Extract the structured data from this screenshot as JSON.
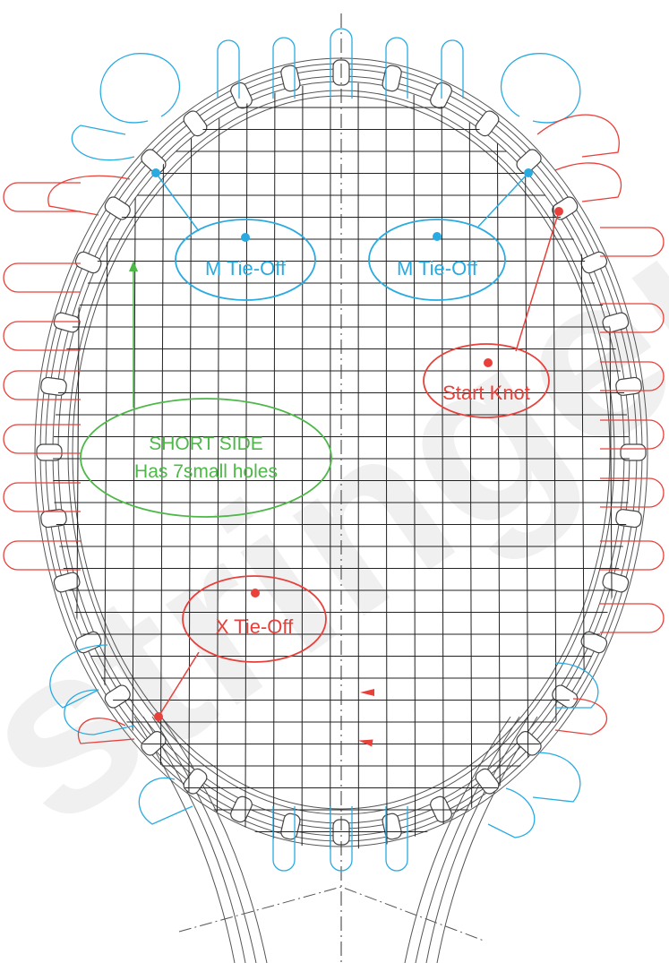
{
  "colors": {
    "mains": "#29abe2",
    "crosses": "#e8403a",
    "short_side": "#4db848",
    "frame": "#555555",
    "grid": "#222222",
    "watermark": "#e6e6e6"
  },
  "labels": {
    "m_tie_off_left": "M Tie-Off",
    "m_tie_off_right": "M Tie-Off",
    "start_knot": "Start Knot",
    "short_side_line1": "SHORT SIDE",
    "short_side_line2": "Has 7small holes",
    "x_tie_off": "X Tie-Off"
  },
  "watermark": "stringer"
}
